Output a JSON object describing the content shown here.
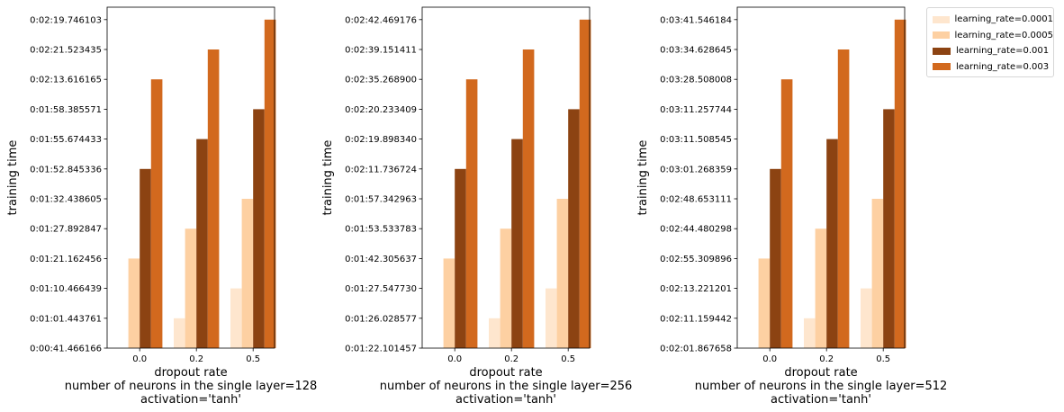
{
  "chart_data": [
    {
      "type": "bar",
      "ylabel": "training time",
      "xlabel": "dropout rate",
      "subtitle_lines": [
        "number of neurons in the single layer=128",
        "activation='tanh'"
      ],
      "categories": [
        "0.0",
        "0.2",
        "0.5"
      ],
      "y_tick_labels": [
        "0:00:41.466166",
        "0:01:01.443761",
        "0:01:10.466439",
        "0:01:21.162456",
        "0:01:27.892847",
        "0:01:32.438605",
        "0:01:52.845336",
        "0:01:55.674433",
        "0:01:58.385571",
        "0:02:13.616165",
        "0:02:21.523435",
        "0:02:19.746103"
      ],
      "y_axis_note": "categorical axis: each tick label is one bar's value, ticks equally spaced",
      "series": [
        {
          "name": "learning_rate=0.0001",
          "values": [
            null,
            "0:01:01.443761",
            "0:01:10.466439"
          ]
        },
        {
          "name": "learning_rate=0.0005",
          "values": [
            "0:01:21.162456",
            "0:01:27.892847",
            "0:01:32.438605"
          ]
        },
        {
          "name": "learning_rate=0.001",
          "values": [
            "0:01:52.845336",
            "0:01:55.674433",
            "0:01:58.385571"
          ]
        },
        {
          "name": "learning_rate=0.003",
          "values": [
            "0:02:13.616165",
            "0:02:21.523435",
            "0:02:19.746103"
          ]
        }
      ],
      "series_levels": [
        [
          null,
          1,
          2
        ],
        [
          3,
          4,
          5
        ],
        [
          6,
          7,
          8
        ],
        [
          9,
          10,
          11
        ]
      ]
    },
    {
      "type": "bar",
      "ylabel": "training time",
      "xlabel": "dropout rate",
      "subtitle_lines": [
        "number of neurons in the single layer=256",
        "activation='tanh'"
      ],
      "categories": [
        "0.0",
        "0.2",
        "0.5"
      ],
      "y_tick_labels": [
        "0:01:22.101457",
        "0:01:26.028577",
        "0:01:27.547730",
        "0:01:42.305637",
        "0:01:53.533783",
        "0:01:57.342963",
        "0:02:11.736724",
        "0:02:19.898340",
        "0:02:20.233409",
        "0:02:35.268900",
        "0:02:39.151411",
        "0:02:42.469176"
      ],
      "y_axis_note": "categorical axis: each tick label is one bar's value, ticks equally spaced",
      "series": [
        {
          "name": "learning_rate=0.0001",
          "values": [
            null,
            "0:01:26.028577",
            "0:01:27.547730"
          ]
        },
        {
          "name": "learning_rate=0.0005",
          "values": [
            "0:01:42.305637",
            "0:01:53.533783",
            "0:01:57.342963"
          ]
        },
        {
          "name": "learning_rate=0.001",
          "values": [
            "0:02:11.736724",
            "0:02:19.898340",
            "0:02:20.233409"
          ]
        },
        {
          "name": "learning_rate=0.003",
          "values": [
            "0:02:35.268900",
            "0:02:39.151411",
            "0:02:42.469176"
          ]
        }
      ],
      "series_levels": [
        [
          null,
          1,
          2
        ],
        [
          3,
          4,
          5
        ],
        [
          6,
          7,
          8
        ],
        [
          9,
          10,
          11
        ]
      ]
    },
    {
      "type": "bar",
      "ylabel": "training time",
      "xlabel": "dropout rate",
      "subtitle_lines": [
        "number of neurons in the single layer=512",
        "activation='tanh'"
      ],
      "categories": [
        "0.0",
        "0.2",
        "0.5"
      ],
      "y_tick_labels": [
        "0:02:01.867658",
        "0:02:11.159442",
        "0:02:13.221201",
        "0:02:55.309896",
        "0:02:44.480298",
        "0:02:48.653111",
        "0:03:01.268359",
        "0:03:11.508545",
        "0:03:11.257744",
        "0:03:28.508008",
        "0:03:34.628645",
        "0:03:41.546184"
      ],
      "y_axis_note": "categorical axis: each tick label is one bar's value, ticks equally spaced",
      "series": [
        {
          "name": "learning_rate=0.0001",
          "values": [
            null,
            "0:02:11.159442",
            "0:02:13.221201"
          ]
        },
        {
          "name": "learning_rate=0.0005",
          "values": [
            "0:02:55.309896",
            "0:02:44.480298",
            "0:02:48.653111"
          ]
        },
        {
          "name": "learning_rate=0.001",
          "values": [
            "0:03:01.268359",
            "0:03:11.508545",
            "0:03:11.257744"
          ]
        },
        {
          "name": "learning_rate=0.003",
          "values": [
            "0:03:28.508008",
            "0:03:34.628645",
            "0:03:41.546184"
          ]
        }
      ],
      "series_levels": [
        [
          null,
          1,
          2
        ],
        [
          3,
          4,
          5
        ],
        [
          6,
          7,
          8
        ],
        [
          9,
          10,
          11
        ]
      ]
    }
  ],
  "legend": {
    "placement": "upper-right-outside",
    "items": [
      {
        "label": "learning_rate=0.0001",
        "color": "#fee6ce"
      },
      {
        "label": "learning_rate=0.0005",
        "color": "#fdd0a2"
      },
      {
        "label": "learning_rate=0.001",
        "color": "#8c4312"
      },
      {
        "label": "learning_rate=0.003",
        "color": "#d2691e"
      }
    ]
  }
}
